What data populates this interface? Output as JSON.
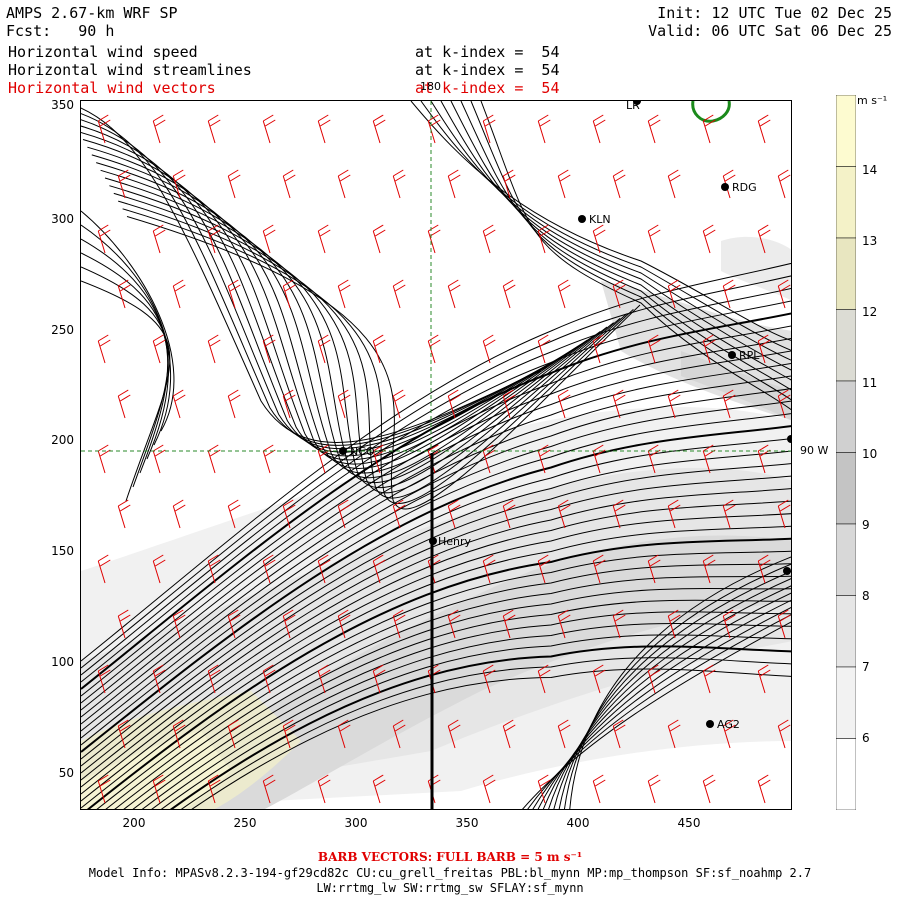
{
  "header": {
    "model": "AMPS 2.67-km WRF SP",
    "forecast": "Fcst:   90 h",
    "init": "Init: 12 UTC Tue 02 Dec 25",
    "valid": "Valid: 06 UTC Sat 06 Dec 25",
    "line1_field": "Horizontal wind speed",
    "line1_level": "at k-index =  54",
    "line2_field": "Horizontal wind streamlines",
    "line2_level": "at k-index =  54",
    "line3_field": "Horizontal wind vectors",
    "line3_level": "at k-index =  54"
  },
  "axes": {
    "x_ticks": [
      "200",
      "250",
      "300",
      "350",
      "400",
      "450"
    ],
    "y_ticks": [
      "350",
      "300",
      "250",
      "200",
      "150",
      "100",
      "50"
    ],
    "meridian_label": "180",
    "parallel_label": "90 W"
  },
  "stations": [
    {
      "name": "LR",
      "label": "LR"
    },
    {
      "name": "RDG",
      "label": "RDG"
    },
    {
      "name": "KLN",
      "label": "KLN"
    },
    {
      "name": "RPL",
      "label": "RPL"
    },
    {
      "name": "NCO",
      "label": "NCO"
    },
    {
      "name": "Henry",
      "label": "Henry"
    },
    {
      "name": "AG2",
      "label": "AG2"
    },
    {
      "name": "unlabeled-east",
      "label": ""
    }
  ],
  "colorbar": {
    "unit": "m s⁻¹",
    "levels": [
      "14",
      "13",
      "12",
      "11",
      "10",
      "9",
      "8",
      "7",
      "6"
    ],
    "colors": [
      "#fdfbd0",
      "#f4f2c8",
      "#e8e6c0",
      "#dcdcd4",
      "#d0d0d0",
      "#c4c4c4",
      "#d8d8d8",
      "#e6e6e6",
      "#f2f2f2",
      "#ffffff"
    ]
  },
  "colors": {
    "streamlines": "#000000",
    "barbs": "#e00000",
    "grid": "#2a8a2a",
    "coast": "#1a8a1a"
  },
  "footer": {
    "barb_note": "BARB VECTORS:  FULL BARB = 5 m s⁻¹",
    "model_info": "Model Info: MPASv8.2.3-194-gf29cd82c CU:cu_grell_freitas PBL:bl_mynn MP:mp_thompson SF:sf_noahmp 2.7",
    "physics": "LW:rrtmg_lw SW:rrtmg_sw SFLAY:sf_mynn"
  }
}
